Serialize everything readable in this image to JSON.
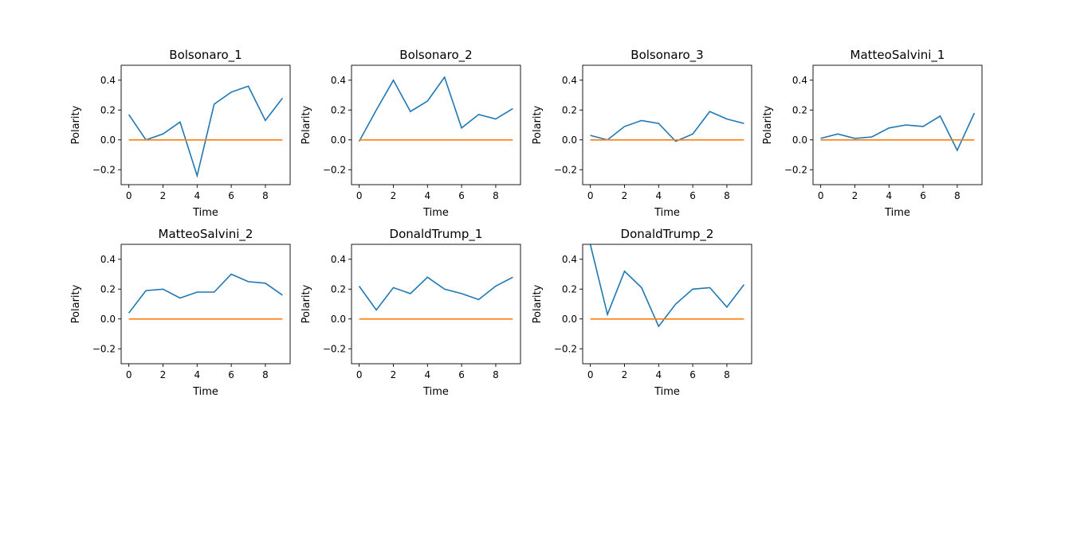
{
  "figure": {
    "x_label": "Time",
    "y_label": "Polarity",
    "colors": {
      "series": "#1f77b4",
      "zero_line": "#ff7f0e",
      "axes": "#000000"
    }
  },
  "chart_data": [
    {
      "type": "line",
      "title": "Bolsonaro_1",
      "xlabel": "Time",
      "ylabel": "Polarity",
      "x": [
        0,
        1,
        2,
        3,
        4,
        5,
        6,
        7,
        8,
        9
      ],
      "series": [
        {
          "values": [
            0.17,
            0.0,
            0.04,
            0.12,
            -0.24,
            0.24,
            0.32,
            0.36,
            0.13,
            0.28
          ],
          "color": "#1f77b4"
        },
        {
          "values": [
            0,
            0,
            0,
            0,
            0,
            0,
            0,
            0,
            0,
            0
          ],
          "color": "#ff7f0e"
        }
      ],
      "xlim": [
        -0.45,
        9.45
      ],
      "ylim": [
        -0.3,
        0.5
      ],
      "xticks": [
        0,
        2,
        4,
        6,
        8
      ],
      "yticks": [
        -0.2,
        0.0,
        0.2,
        0.4
      ],
      "xticklabels": [
        "0",
        "2",
        "4",
        "6",
        "8"
      ],
      "yticklabels": [
        "−0.2",
        "0.0",
        "0.2",
        "0.4"
      ]
    },
    {
      "type": "line",
      "title": "Bolsonaro_2",
      "xlabel": "Time",
      "ylabel": "Polarity",
      "x": [
        0,
        1,
        2,
        3,
        4,
        5,
        6,
        7,
        8,
        9
      ],
      "series": [
        {
          "values": [
            -0.01,
            0.2,
            0.4,
            0.19,
            0.26,
            0.42,
            0.08,
            0.17,
            0.14,
            0.21
          ],
          "color": "#1f77b4"
        },
        {
          "values": [
            0,
            0,
            0,
            0,
            0,
            0,
            0,
            0,
            0,
            0
          ],
          "color": "#ff7f0e"
        }
      ],
      "xlim": [
        -0.45,
        9.45
      ],
      "ylim": [
        -0.3,
        0.5
      ],
      "xticks": [
        0,
        2,
        4,
        6,
        8
      ],
      "yticks": [
        -0.2,
        0.0,
        0.2,
        0.4
      ],
      "xticklabels": [
        "0",
        "2",
        "4",
        "6",
        "8"
      ],
      "yticklabels": [
        "−0.2",
        "0.0",
        "0.2",
        "0.4"
      ]
    },
    {
      "type": "line",
      "title": "Bolsonaro_3",
      "xlabel": "Time",
      "ylabel": "Polarity",
      "x": [
        0,
        1,
        2,
        3,
        4,
        5,
        6,
        7,
        8,
        9
      ],
      "series": [
        {
          "values": [
            0.03,
            0.0,
            0.09,
            0.13,
            0.11,
            -0.01,
            0.04,
            0.19,
            0.14,
            0.11
          ],
          "color": "#1f77b4"
        },
        {
          "values": [
            0,
            0,
            0,
            0,
            0,
            0,
            0,
            0,
            0,
            0
          ],
          "color": "#ff7f0e"
        }
      ],
      "xlim": [
        -0.45,
        9.45
      ],
      "ylim": [
        -0.3,
        0.5
      ],
      "xticks": [
        0,
        2,
        4,
        6,
        8
      ],
      "yticks": [
        -0.2,
        0.0,
        0.2,
        0.4
      ],
      "xticklabels": [
        "0",
        "2",
        "4",
        "6",
        "8"
      ],
      "yticklabels": [
        "−0.2",
        "0.0",
        "0.2",
        "0.4"
      ]
    },
    {
      "type": "line",
      "title": "MatteoSalvini_1",
      "xlabel": "Time",
      "ylabel": "Polarity",
      "x": [
        0,
        1,
        2,
        3,
        4,
        5,
        6,
        7,
        8,
        9
      ],
      "series": [
        {
          "values": [
            0.01,
            0.04,
            0.01,
            0.02,
            0.08,
            0.1,
            0.09,
            0.16,
            -0.07,
            0.18
          ],
          "color": "#1f77b4"
        },
        {
          "values": [
            0,
            0,
            0,
            0,
            0,
            0,
            0,
            0,
            0,
            0
          ],
          "color": "#ff7f0e"
        }
      ],
      "xlim": [
        -0.45,
        9.45
      ],
      "ylim": [
        -0.3,
        0.5
      ],
      "xticks": [
        0,
        2,
        4,
        6,
        8
      ],
      "yticks": [
        -0.2,
        0.0,
        0.2,
        0.4
      ],
      "xticklabels": [
        "0",
        "2",
        "4",
        "6",
        "8"
      ],
      "yticklabels": [
        "−0.2",
        "0.0",
        "0.2",
        "0.4"
      ]
    },
    {
      "type": "line",
      "title": "MatteoSalvini_2",
      "xlabel": "Time",
      "ylabel": "Polarity",
      "x": [
        0,
        1,
        2,
        3,
        4,
        5,
        6,
        7,
        8,
        9
      ],
      "series": [
        {
          "values": [
            0.04,
            0.19,
            0.2,
            0.14,
            0.18,
            0.18,
            0.3,
            0.25,
            0.24,
            0.16
          ],
          "color": "#1f77b4"
        },
        {
          "values": [
            0,
            0,
            0,
            0,
            0,
            0,
            0,
            0,
            0,
            0
          ],
          "color": "#ff7f0e"
        }
      ],
      "xlim": [
        -0.45,
        9.45
      ],
      "ylim": [
        -0.3,
        0.5
      ],
      "xticks": [
        0,
        2,
        4,
        6,
        8
      ],
      "yticks": [
        -0.2,
        0.0,
        0.2,
        0.4
      ],
      "xticklabels": [
        "0",
        "2",
        "4",
        "6",
        "8"
      ],
      "yticklabels": [
        "−0.2",
        "0.0",
        "0.2",
        "0.4"
      ]
    },
    {
      "type": "line",
      "title": "DonaldTrump_1",
      "xlabel": "Time",
      "ylabel": "Polarity",
      "x": [
        0,
        1,
        2,
        3,
        4,
        5,
        6,
        7,
        8,
        9
      ],
      "series": [
        {
          "values": [
            0.22,
            0.06,
            0.21,
            0.17,
            0.28,
            0.2,
            0.17,
            0.13,
            0.22,
            0.28
          ],
          "color": "#1f77b4"
        },
        {
          "values": [
            0,
            0,
            0,
            0,
            0,
            0,
            0,
            0,
            0,
            0
          ],
          "color": "#ff7f0e"
        }
      ],
      "xlim": [
        -0.45,
        9.45
      ],
      "ylim": [
        -0.3,
        0.5
      ],
      "xticks": [
        0,
        2,
        4,
        6,
        8
      ],
      "yticks": [
        -0.2,
        0.0,
        0.2,
        0.4
      ],
      "xticklabels": [
        "0",
        "2",
        "4",
        "6",
        "8"
      ],
      "yticklabels": [
        "−0.2",
        "0.0",
        "0.2",
        "0.4"
      ]
    },
    {
      "type": "line",
      "title": "DonaldTrump_2",
      "xlabel": "Time",
      "ylabel": "Polarity",
      "x": [
        0,
        1,
        2,
        3,
        4,
        5,
        6,
        7,
        8,
        9
      ],
      "series": [
        {
          "values": [
            0.5,
            0.03,
            0.32,
            0.21,
            -0.05,
            0.1,
            0.2,
            0.21,
            0.08,
            0.23
          ],
          "color": "#1f77b4"
        },
        {
          "values": [
            0,
            0,
            0,
            0,
            0,
            0,
            0,
            0,
            0,
            0
          ],
          "color": "#ff7f0e"
        }
      ],
      "xlim": [
        -0.45,
        9.45
      ],
      "ylim": [
        -0.3,
        0.5
      ],
      "xticks": [
        0,
        2,
        4,
        6,
        8
      ],
      "yticks": [
        -0.2,
        0.0,
        0.2,
        0.4
      ],
      "xticklabels": [
        "0",
        "2",
        "4",
        "6",
        "8"
      ],
      "yticklabels": [
        "−0.2",
        "0.0",
        "0.2",
        "0.4"
      ]
    }
  ]
}
